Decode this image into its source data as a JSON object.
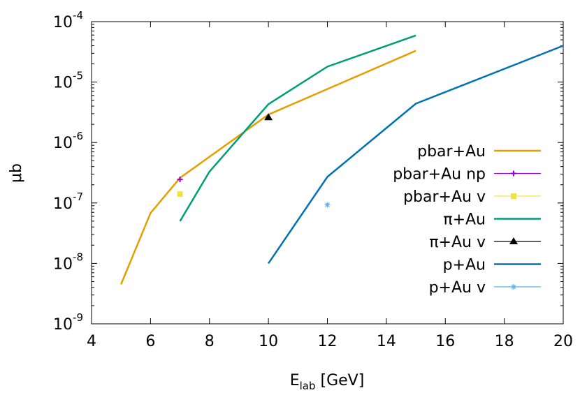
{
  "chart_data": {
    "type": "line",
    "xlabel": "E",
    "xlabel_sub": "lab",
    "xlabel_unit": " [GeV]",
    "ylabel": "μb",
    "xlim": [
      4,
      20
    ],
    "ylim": [
      1e-09,
      0.0001
    ],
    "yscale": "log",
    "grid": false,
    "legend_position": "right",
    "x_ticks": [
      4,
      6,
      8,
      10,
      12,
      14,
      16,
      18,
      20
    ],
    "y_ticks": [
      {
        "value": 1e-09,
        "base": "10",
        "exp": "-9"
      },
      {
        "value": 1e-08,
        "base": "10",
        "exp": "-8"
      },
      {
        "value": 1e-07,
        "base": "10",
        "exp": "-7"
      },
      {
        "value": 1e-06,
        "base": "10",
        "exp": "-6"
      },
      {
        "value": 1e-05,
        "base": "10",
        "exp": "-5"
      },
      {
        "value": 0.0001,
        "base": "10",
        "exp": "-4"
      }
    ],
    "series": [
      {
        "name": "pbar+Au",
        "style": "line",
        "color": "#e69f00",
        "x": [
          5,
          6,
          7,
          10,
          15
        ],
        "y": [
          4.5e-09,
          6.8e-08,
          2.6e-07,
          2.9e-06,
          3.3e-05
        ]
      },
      {
        "name": "pbar+Au np",
        "style": "points",
        "marker": "plus",
        "color": "#9400d3",
        "x": [
          7
        ],
        "y": [
          2.45e-07
        ]
      },
      {
        "name": "pbar+Au v",
        "style": "points",
        "marker": "square",
        "color": "#f0e442",
        "x": [
          7
        ],
        "y": [
          1.4e-07
        ]
      },
      {
        "name": "π+Au",
        "style": "line",
        "color": "#009e73",
        "x": [
          7,
          8,
          10,
          12,
          15
        ],
        "y": [
          5e-08,
          3.3e-07,
          4.3e-06,
          1.8e-05,
          5.9e-05
        ]
      },
      {
        "name": "π+Au v",
        "style": "points",
        "marker": "triangle",
        "color": "#000000",
        "x": [
          10
        ],
        "y": [
          2.6e-06
        ]
      },
      {
        "name": "p+Au",
        "style": "line",
        "color": "#0072b2",
        "x": [
          10,
          12,
          15,
          20
        ],
        "y": [
          1e-08,
          2.7e-07,
          4.4e-06,
          4e-05
        ]
      },
      {
        "name": "p+Au v",
        "style": "points",
        "marker": "star",
        "color": "#56b4e9",
        "x": [
          12
        ],
        "y": [
          9.3e-08
        ]
      }
    ]
  }
}
